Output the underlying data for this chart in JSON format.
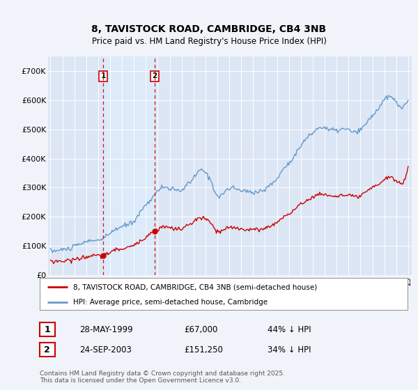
{
  "title_line1": "8, TAVISTOCK ROAD, CAMBRIDGE, CB4 3NB",
  "title_line2": "Price paid vs. HM Land Registry's House Price Index (HPI)",
  "background_color": "#f0f4fa",
  "plot_bg_color": "#dce6f5",
  "legend_label_red": "8, TAVISTOCK ROAD, CAMBRIDGE, CB4 3NB (semi-detached house)",
  "legend_label_blue": "HPI: Average price, semi-detached house, Cambridge",
  "transaction1_date": "28-MAY-1999",
  "transaction1_price": "£67,000",
  "transaction1_hpi": "44% ↓ HPI",
  "transaction2_date": "24-SEP-2003",
  "transaction2_price": "£151,250",
  "transaction2_hpi": "34% ↓ HPI",
  "footer": "Contains HM Land Registry data © Crown copyright and database right 2025.\nThis data is licensed under the Open Government Licence v3.0.",
  "red_color": "#cc0000",
  "blue_color": "#6699cc",
  "vline_color": "#cc0000",
  "shade_color": "#ddeeff",
  "ylim_max": 750000,
  "ylim_min": 0,
  "vline1_x": 1999.42,
  "vline2_x": 2003.75,
  "xlim_min": 1994.8,
  "xlim_max": 2025.3,
  "yticks": [
    0,
    100000,
    200000,
    300000,
    400000,
    500000,
    600000,
    700000
  ],
  "ylabels": [
    "£0",
    "£100K",
    "£200K",
    "£300K",
    "£400K",
    "£500K",
    "£600K",
    "£700K"
  ]
}
